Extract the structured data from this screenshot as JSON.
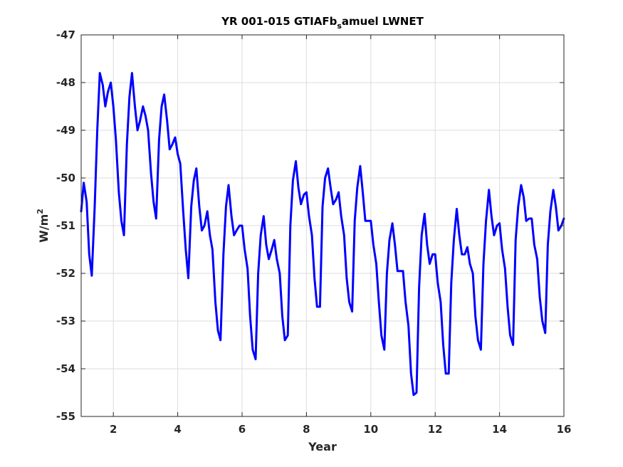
{
  "chart_data": {
    "type": "line",
    "title": {
      "prefix": "YR 001-015 GTIAFb",
      "subscript": "s",
      "suffix": "amuel LWNET"
    },
    "xlabel": "Year",
    "ylabel": {
      "base": "W/m",
      "superscript": "2"
    },
    "xlim": [
      1,
      16
    ],
    "ylim": [
      -55,
      -47
    ],
    "xticks": [
      2,
      4,
      6,
      8,
      10,
      12,
      14,
      16
    ],
    "yticks": [
      -55,
      -54,
      -53,
      -52,
      -51,
      -50,
      -49,
      -48,
      -47
    ],
    "grid": true,
    "line_color": "#0000ff",
    "series": [
      {
        "points": [
          [
            1.0,
            -50.7
          ],
          [
            1.08,
            -50.1
          ],
          [
            1.17,
            -50.5
          ],
          [
            1.25,
            -51.6
          ],
          [
            1.33,
            -52.05
          ],
          [
            1.42,
            -50.6
          ],
          [
            1.5,
            -49.0
          ],
          [
            1.58,
            -47.8
          ],
          [
            1.67,
            -48.05
          ],
          [
            1.75,
            -48.5
          ],
          [
            1.83,
            -48.2
          ],
          [
            1.92,
            -48.0
          ],
          [
            2.0,
            -48.5
          ],
          [
            2.08,
            -49.2
          ],
          [
            2.17,
            -50.3
          ],
          [
            2.25,
            -50.9
          ],
          [
            2.33,
            -51.2
          ],
          [
            2.42,
            -49.3
          ],
          [
            2.5,
            -48.3
          ],
          [
            2.58,
            -47.8
          ],
          [
            2.67,
            -48.5
          ],
          [
            2.75,
            -49.0
          ],
          [
            2.83,
            -48.8
          ],
          [
            2.92,
            -48.5
          ],
          [
            3.0,
            -48.7
          ],
          [
            3.08,
            -49.0
          ],
          [
            3.17,
            -49.9
          ],
          [
            3.25,
            -50.5
          ],
          [
            3.33,
            -50.85
          ],
          [
            3.42,
            -49.2
          ],
          [
            3.5,
            -48.5
          ],
          [
            3.58,
            -48.25
          ],
          [
            3.67,
            -48.8
          ],
          [
            3.75,
            -49.4
          ],
          [
            3.83,
            -49.3
          ],
          [
            3.92,
            -49.15
          ],
          [
            4.0,
            -49.5
          ],
          [
            4.08,
            -49.7
          ],
          [
            4.17,
            -50.7
          ],
          [
            4.25,
            -51.5
          ],
          [
            4.33,
            -52.1
          ],
          [
            4.42,
            -50.6
          ],
          [
            4.5,
            -50.05
          ],
          [
            4.58,
            -49.8
          ],
          [
            4.67,
            -50.6
          ],
          [
            4.75,
            -51.1
          ],
          [
            4.83,
            -51.0
          ],
          [
            4.92,
            -50.7
          ],
          [
            5.0,
            -51.2
          ],
          [
            5.08,
            -51.5
          ],
          [
            5.17,
            -52.6
          ],
          [
            5.25,
            -53.2
          ],
          [
            5.33,
            -53.4
          ],
          [
            5.42,
            -51.6
          ],
          [
            5.5,
            -50.6
          ],
          [
            5.58,
            -50.15
          ],
          [
            5.67,
            -50.8
          ],
          [
            5.75,
            -51.2
          ],
          [
            5.83,
            -51.1
          ],
          [
            5.92,
            -51.0
          ],
          [
            6.0,
            -51.0
          ],
          [
            6.08,
            -51.5
          ],
          [
            6.17,
            -51.9
          ],
          [
            6.25,
            -52.9
          ],
          [
            6.33,
            -53.6
          ],
          [
            6.42,
            -53.8
          ],
          [
            6.5,
            -52.0
          ],
          [
            6.58,
            -51.2
          ],
          [
            6.67,
            -50.8
          ],
          [
            6.75,
            -51.4
          ],
          [
            6.83,
            -51.7
          ],
          [
            6.92,
            -51.5
          ],
          [
            7.0,
            -51.3
          ],
          [
            7.08,
            -51.7
          ],
          [
            7.17,
            -52.0
          ],
          [
            7.25,
            -52.9
          ],
          [
            7.33,
            -53.4
          ],
          [
            7.42,
            -53.3
          ],
          [
            7.5,
            -51.0
          ],
          [
            7.58,
            -50.05
          ],
          [
            7.67,
            -49.65
          ],
          [
            7.75,
            -50.2
          ],
          [
            7.83,
            -50.55
          ],
          [
            7.92,
            -50.35
          ],
          [
            8.0,
            -50.3
          ],
          [
            8.08,
            -50.8
          ],
          [
            8.17,
            -51.2
          ],
          [
            8.25,
            -52.1
          ],
          [
            8.33,
            -52.7
          ],
          [
            8.42,
            -52.7
          ],
          [
            8.5,
            -50.6
          ],
          [
            8.58,
            -50.0
          ],
          [
            8.67,
            -49.8
          ],
          [
            8.75,
            -50.2
          ],
          [
            8.83,
            -50.55
          ],
          [
            8.92,
            -50.45
          ],
          [
            9.0,
            -50.3
          ],
          [
            9.08,
            -50.8
          ],
          [
            9.17,
            -51.2
          ],
          [
            9.25,
            -52.1
          ],
          [
            9.33,
            -52.6
          ],
          [
            9.42,
            -52.8
          ],
          [
            9.5,
            -50.9
          ],
          [
            9.58,
            -50.2
          ],
          [
            9.67,
            -49.75
          ],
          [
            9.75,
            -50.3
          ],
          [
            9.83,
            -50.9
          ],
          [
            9.92,
            -50.9
          ],
          [
            10.0,
            -50.9
          ],
          [
            10.08,
            -51.4
          ],
          [
            10.17,
            -51.8
          ],
          [
            10.25,
            -52.6
          ],
          [
            10.33,
            -53.3
          ],
          [
            10.42,
            -53.6
          ],
          [
            10.5,
            -52.0
          ],
          [
            10.58,
            -51.3
          ],
          [
            10.67,
            -50.95
          ],
          [
            10.75,
            -51.4
          ],
          [
            10.83,
            -51.95
          ],
          [
            10.92,
            -51.95
          ],
          [
            11.0,
            -51.95
          ],
          [
            11.08,
            -52.6
          ],
          [
            11.17,
            -53.1
          ],
          [
            11.25,
            -54.1
          ],
          [
            11.33,
            -54.55
          ],
          [
            11.42,
            -54.5
          ],
          [
            11.5,
            -52.3
          ],
          [
            11.58,
            -51.2
          ],
          [
            11.67,
            -50.75
          ],
          [
            11.75,
            -51.4
          ],
          [
            11.83,
            -51.8
          ],
          [
            11.92,
            -51.6
          ],
          [
            12.0,
            -51.6
          ],
          [
            12.08,
            -52.2
          ],
          [
            12.17,
            -52.6
          ],
          [
            12.25,
            -53.5
          ],
          [
            12.33,
            -54.1
          ],
          [
            12.42,
            -54.1
          ],
          [
            12.5,
            -52.2
          ],
          [
            12.58,
            -51.3
          ],
          [
            12.67,
            -50.65
          ],
          [
            12.75,
            -51.2
          ],
          [
            12.83,
            -51.6
          ],
          [
            12.92,
            -51.6
          ],
          [
            13.0,
            -51.45
          ],
          [
            13.08,
            -51.8
          ],
          [
            13.17,
            -52.0
          ],
          [
            13.25,
            -52.9
          ],
          [
            13.33,
            -53.4
          ],
          [
            13.42,
            -53.6
          ],
          [
            13.5,
            -51.8
          ],
          [
            13.58,
            -50.9
          ],
          [
            13.67,
            -50.25
          ],
          [
            13.75,
            -50.8
          ],
          [
            13.83,
            -51.2
          ],
          [
            13.92,
            -51.0
          ],
          [
            14.0,
            -50.95
          ],
          [
            14.08,
            -51.5
          ],
          [
            14.17,
            -51.9
          ],
          [
            14.25,
            -52.7
          ],
          [
            14.33,
            -53.3
          ],
          [
            14.42,
            -53.5
          ],
          [
            14.5,
            -51.3
          ],
          [
            14.58,
            -50.6
          ],
          [
            14.67,
            -50.15
          ],
          [
            14.75,
            -50.4
          ],
          [
            14.83,
            -50.9
          ],
          [
            14.92,
            -50.85
          ],
          [
            15.0,
            -50.85
          ],
          [
            15.08,
            -51.4
          ],
          [
            15.17,
            -51.7
          ],
          [
            15.25,
            -52.5
          ],
          [
            15.33,
            -53.0
          ],
          [
            15.42,
            -53.25
          ],
          [
            15.5,
            -51.4
          ],
          [
            15.58,
            -50.7
          ],
          [
            15.67,
            -50.25
          ],
          [
            15.75,
            -50.6
          ],
          [
            15.83,
            -51.1
          ],
          [
            15.92,
            -51.0
          ],
          [
            16.0,
            -50.85
          ]
        ]
      }
    ]
  }
}
